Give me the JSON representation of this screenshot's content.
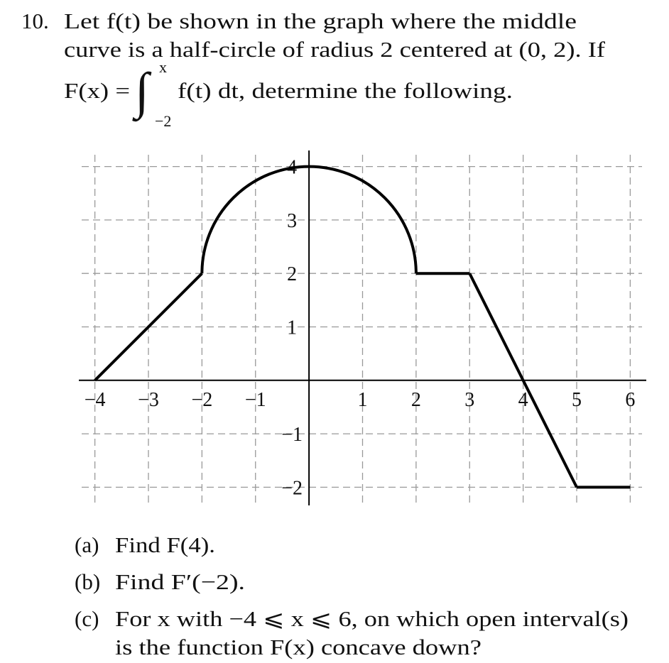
{
  "problem": {
    "number": "10.",
    "lines": [
      "Let f(t) be shown in the graph where the middle",
      "curve is a half-circle of radius 2 centered at (0, 2). If"
    ],
    "integral": {
      "lhs": "F(x) =",
      "sign": "∫",
      "upper": "x",
      "lower": "−2",
      "rest": "f(t) dt, determine the following."
    }
  },
  "graph": {
    "xlim": [
      -4.3,
      6.3
    ],
    "ylim": [
      -2.3,
      4.3
    ],
    "xticks": [
      {
        "value": -4,
        "label": "−4"
      },
      {
        "value": -3,
        "label": "−3"
      },
      {
        "value": -2,
        "label": "−2"
      },
      {
        "value": -1,
        "label": "−1"
      },
      1,
      2,
      3,
      4,
      5,
      6
    ],
    "yticks": [
      {
        "value": -2,
        "label": "−2"
      },
      {
        "value": -1,
        "label": "−1"
      },
      1,
      2,
      3,
      4
    ],
    "grid": true,
    "curve": {
      "segments": [
        {
          "x": [
            -4,
            -2
          ],
          "y": [
            0,
            2
          ]
        },
        {
          "x": [
            2,
            3
          ],
          "y": [
            2,
            2
          ]
        },
        {
          "x": [
            3,
            5
          ],
          "y": [
            2,
            -2
          ]
        },
        {
          "x": [
            5,
            6
          ],
          "y": [
            -2,
            -2
          ]
        }
      ],
      "arc": {
        "center": [
          0,
          2
        ],
        "radius": 2
      }
    }
  },
  "parts": [
    {
      "label": "(a)",
      "lines": [
        "Find F(4)."
      ]
    },
    {
      "label": "(b)",
      "lines": [
        "Find F′(−2)."
      ]
    },
    {
      "label": "(c)",
      "lines": [
        "For x with −4 ⩽ x ⩽ 6, on which open interval(s)",
        "is the function F(x) concave down?"
      ]
    }
  ]
}
